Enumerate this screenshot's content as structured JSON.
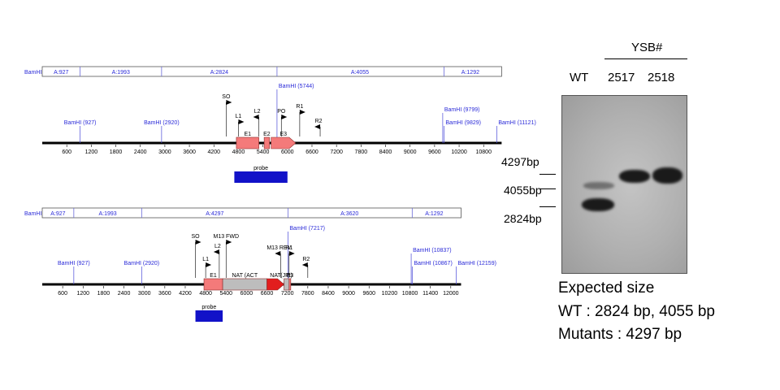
{
  "maps": [
    {
      "segments": [
        {
          "label": "BamHI",
          "x0": 0,
          "x1": 0
        },
        {
          "label": "A:927",
          "x0": 0,
          "x1": 927
        },
        {
          "label": "A:1993",
          "x0": 927,
          "x1": 2920
        },
        {
          "label": "A:2824",
          "x0": 2920,
          "x1": 5744
        },
        {
          "label": "A:4055",
          "x0": 5744,
          "x1": 9799
        },
        {
          "label": "A:1292",
          "x0": 9829,
          "x1": 11121
        }
      ],
      "sites": [
        {
          "label": "BamHI (927)",
          "pos": 927
        },
        {
          "label": "BamHI (2920)",
          "pos": 2920
        },
        {
          "label": "BamHI (5744)",
          "pos": 5744
        },
        {
          "label": "BamHI (9799)",
          "pos": 9799
        },
        {
          "label": "BamHI (9829)",
          "pos": 9829
        },
        {
          "label": "BamHI (11121)",
          "pos": 11121
        }
      ],
      "ticks": [
        600,
        1200,
        1800,
        2400,
        3000,
        3600,
        4200,
        4800,
        5400,
        6000,
        6600,
        7200,
        7800,
        8400,
        9000,
        9600,
        10200,
        10800
      ],
      "primers": [
        {
          "label": "SO",
          "pos": 4500,
          "dir": "right"
        },
        {
          "label": "L1",
          "pos": 4800,
          "dir": "right"
        },
        {
          "label": "L2",
          "pos": 5300,
          "dir": "left"
        },
        {
          "label": "PO",
          "pos": 5850,
          "dir": "right"
        },
        {
          "label": "R1",
          "pos": 6300,
          "dir": "right"
        },
        {
          "label": "R2",
          "pos": 6800,
          "dir": "left"
        }
      ],
      "features": [
        {
          "label": "E1",
          "start": 4750,
          "end": 5300,
          "color": "#f47a7a",
          "shape": "box"
        },
        {
          "label": "E2",
          "start": 5430,
          "end": 5560,
          "color": "#f47a7a",
          "shape": "box"
        },
        {
          "label": "E3",
          "start": 5600,
          "end": 6200,
          "color": "#f47a7a",
          "shape": "arrow"
        }
      ],
      "probe": {
        "label": "probe",
        "start": 4700,
        "end": 6000
      }
    },
    {
      "segments": [
        {
          "label": "BamHI",
          "x0": 0,
          "x1": 0
        },
        {
          "label": "A:927",
          "x0": 0,
          "x1": 927
        },
        {
          "label": "A:1993",
          "x0": 927,
          "x1": 2920
        },
        {
          "label": "A:4297",
          "x0": 2920,
          "x1": 7217
        },
        {
          "label": "A:3620",
          "x0": 7217,
          "x1": 10837
        },
        {
          "label": "A:1292",
          "x0": 10867,
          "x1": 12159
        }
      ],
      "sites": [
        {
          "label": "BamHI (927)",
          "pos": 927
        },
        {
          "label": "BamHI (2920)",
          "pos": 2920
        },
        {
          "label": "BamHI (7217)",
          "pos": 7217
        },
        {
          "label": "BamHI (10837)",
          "pos": 10837
        },
        {
          "label": "BamHI (10867)",
          "pos": 10867
        },
        {
          "label": "BamHI (12159)",
          "pos": 12159
        }
      ],
      "ticks": [
        600,
        1200,
        1800,
        2400,
        3000,
        3600,
        4200,
        4800,
        5400,
        6000,
        6600,
        7200,
        7800,
        8400,
        9000,
        9600,
        10200,
        10800,
        11400,
        12000
      ],
      "primers": [
        {
          "label": "SO",
          "pos": 4500,
          "dir": "right"
        },
        {
          "label": "L1",
          "pos": 4800,
          "dir": "right"
        },
        {
          "label": "L2",
          "pos": 5200,
          "dir": "left"
        },
        {
          "label": "M13 FWD",
          "pos": 5400,
          "dir": "right"
        },
        {
          "label": "M13 REV",
          "pos": 7000,
          "dir": "left"
        },
        {
          "label": "R1",
          "pos": 7250,
          "dir": "right"
        },
        {
          "label": "R2",
          "pos": 7800,
          "dir": "left"
        }
      ],
      "features": [
        {
          "label": "E1",
          "start": 4750,
          "end": 5300,
          "color": "#f47a7a",
          "shape": "box"
        },
        {
          "label": "NAT (ACT",
          "start": 5300,
          "end": 6600,
          "color": "#bdbdbd",
          "shape": "box"
        },
        {
          "label": "NAT",
          "start": 6600,
          "end": 7100,
          "color": "#e21e1e",
          "shape": "arrow"
        },
        {
          "label": "(JPt)",
          "start": 7100,
          "end": 7250,
          "color": "#bdbdbd",
          "shape": "box"
        },
        {
          "label": "E3",
          "start": 7250,
          "end": 7300,
          "color": "#f47a7a",
          "shape": "box"
        }
      ],
      "probe": {
        "label": "probe",
        "start": 4500,
        "end": 5300
      }
    }
  ],
  "gel": {
    "group_label": "YSB#",
    "lanes": [
      "WT",
      "2517",
      "2518"
    ],
    "markers": [
      "4297bp",
      "4055bp",
      "2824bp"
    ]
  },
  "expected": {
    "title": "Expected size",
    "wt": "WT : 2824 bp, 4055 bp",
    "mutants": "Mutants : 4297 bp"
  }
}
